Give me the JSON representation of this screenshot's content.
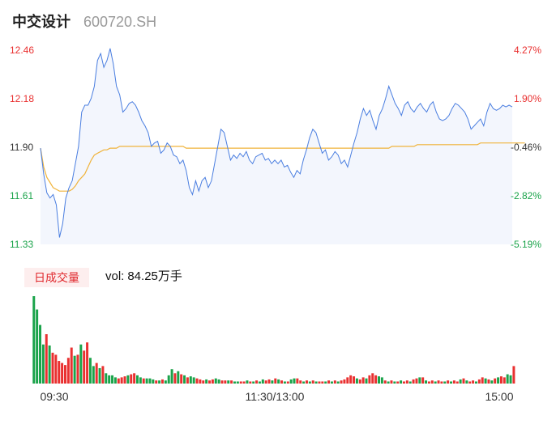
{
  "header": {
    "name": "中交设计",
    "code": "600720.SH"
  },
  "volume_panel": {
    "tab_label": "日成交量",
    "vol_prefix": "vol:",
    "vol_value": "84.25万手"
  },
  "colors": {
    "up": "#e93030",
    "down": "#1aa34a",
    "neutral": "#333333",
    "price_line": "#4a7ee0",
    "avg_line": "#f0b33a",
    "price_area": "#f3f6fd"
  },
  "chart_data": [
    {
      "type": "line",
      "series": [
        {
          "values": [
            11.89,
            11.74,
            11.63,
            11.6,
            11.62,
            11.56,
            11.37,
            11.45,
            11.6,
            11.66,
            11.7,
            11.8,
            11.9,
            12.1,
            12.14,
            12.14,
            12.18,
            12.25,
            12.4,
            12.44,
            12.36,
            12.4,
            12.47,
            12.38,
            12.25,
            12.2,
            12.1,
            12.12,
            12.15,
            12.16,
            12.14,
            12.1,
            12.05,
            12.02,
            11.98,
            11.9,
            11.92,
            11.93,
            11.86,
            11.88,
            11.92,
            11.9,
            11.85,
            11.84,
            11.8,
            11.82,
            11.76,
            11.66,
            11.62,
            11.7,
            11.64,
            11.7,
            11.72,
            11.66,
            11.7,
            11.8,
            11.9,
            12.0,
            11.98,
            11.9,
            11.82,
            11.85,
            11.83,
            11.86,
            11.84,
            11.87,
            11.82,
            11.8,
            11.84,
            11.85,
            11.86,
            11.82,
            11.83,
            11.8,
            11.82,
            11.8,
            11.82,
            11.78,
            11.79,
            11.75,
            11.72,
            11.76,
            11.74,
            11.82,
            11.88,
            11.95,
            12.0,
            11.98,
            11.92,
            11.86,
            11.88,
            11.82,
            11.84,
            11.87,
            11.85,
            11.8,
            11.82,
            11.78,
            11.85,
            11.92,
            11.98,
            12.06,
            12.12,
            12.08,
            12.11,
            12.05,
            12.0,
            12.08,
            12.12,
            12.18,
            12.25,
            12.2,
            12.15,
            12.12,
            12.08,
            12.14,
            12.16,
            12.12,
            12.1,
            12.13,
            12.15,
            12.12,
            12.1,
            12.14,
            12.16,
            12.1,
            12.06,
            12.05,
            12.06,
            12.08,
            12.12,
            12.15,
            12.14,
            12.12,
            12.1,
            12.06,
            12.0,
            12.02,
            12.04,
            12.06,
            12.02,
            12.1,
            12.15,
            12.12,
            12.11,
            12.12,
            12.14,
            12.13,
            12.14,
            12.13
          ],
          "ylim": [
            11.33,
            12.46
          ]
        },
        {
          "values": [
            11.89,
            11.78,
            11.72,
            11.69,
            11.66,
            11.65,
            11.64,
            11.64,
            11.64,
            11.64,
            11.65,
            11.67,
            11.7,
            11.72,
            11.74,
            11.78,
            11.82,
            11.85,
            11.86,
            11.87,
            11.88,
            11.88,
            11.89,
            11.89,
            11.89,
            11.9,
            11.9,
            11.9,
            11.9,
            11.9,
            11.9,
            11.9,
            11.9,
            11.9,
            11.9,
            11.9,
            11.9,
            11.9,
            11.9,
            11.9,
            11.9,
            11.9,
            11.9,
            11.9,
            11.9,
            11.9,
            11.89,
            11.89,
            11.89,
            11.89,
            11.89,
            11.89,
            11.89,
            11.89,
            11.89,
            11.89,
            11.89,
            11.89,
            11.89,
            11.89,
            11.89,
            11.89,
            11.89,
            11.89,
            11.89,
            11.89,
            11.89,
            11.89,
            11.89,
            11.89,
            11.89,
            11.89,
            11.89,
            11.89,
            11.89,
            11.89,
            11.89,
            11.89,
            11.89,
            11.89,
            11.89,
            11.89,
            11.89,
            11.89,
            11.89,
            11.89,
            11.89,
            11.89,
            11.89,
            11.89,
            11.89,
            11.89,
            11.89,
            11.89,
            11.89,
            11.89,
            11.89,
            11.89,
            11.89,
            11.89,
            11.89,
            11.89,
            11.89,
            11.89,
            11.89,
            11.89,
            11.89,
            11.89,
            11.89,
            11.89,
            11.89,
            11.9,
            11.9,
            11.9,
            11.9,
            11.9,
            11.9,
            11.9,
            11.9,
            11.91,
            11.91,
            11.91,
            11.91,
            11.91,
            11.91,
            11.91,
            11.91,
            11.91,
            11.91,
            11.91,
            11.91,
            11.91,
            11.91,
            11.91,
            11.91,
            11.91,
            11.91,
            11.91,
            11.91,
            11.92,
            11.92,
            11.92,
            11.92,
            11.92,
            11.92,
            11.92,
            11.92,
            11.92,
            11.92,
            11.92,
            11.92,
            11.92,
            11.92,
            11.92
          ]
        }
      ],
      "y_ticks_left": [
        "12.46",
        "12.18",
        "11.90",
        "11.61",
        "11.33"
      ],
      "y_ticks_right": [
        "4.27%",
        "1.90%",
        "-0.46%",
        "-2.82%",
        "-5.19%"
      ],
      "y_tick_colors": [
        "up",
        "up",
        "neutral",
        "down",
        "down"
      ]
    },
    {
      "type": "bar",
      "values": [
        85,
        72,
        57,
        38,
        48,
        37,
        30,
        28,
        22,
        20,
        18,
        25,
        35,
        27,
        28,
        38,
        32,
        40,
        25,
        17,
        20,
        15,
        17,
        10,
        8,
        8,
        6,
        5,
        6,
        7,
        8,
        9,
        10,
        8,
        6,
        5,
        5,
        5,
        4,
        3,
        3,
        4,
        3,
        8,
        14,
        10,
        12,
        9,
        8,
        6,
        7,
        6,
        5,
        4,
        3,
        4,
        3,
        4,
        5,
        4,
        3,
        3,
        3,
        3,
        2,
        2,
        2,
        2,
        3,
        2,
        2,
        3,
        2,
        4,
        3,
        4,
        3,
        5,
        4,
        3,
        2,
        2,
        4,
        5,
        5,
        3,
        2,
        3,
        2,
        3,
        2,
        2,
        2,
        2,
        3,
        2,
        3,
        2,
        3,
        4,
        6,
        8,
        7,
        5,
        4,
        6,
        5,
        8,
        10,
        8,
        7,
        6,
        3,
        2,
        3,
        2,
        2,
        3,
        2,
        3,
        2,
        4,
        5,
        6,
        6,
        3,
        2,
        3,
        2,
        3,
        2,
        2,
        3,
        2,
        3,
        2,
        4,
        5,
        3,
        2,
        3,
        2,
        4,
        6,
        5,
        4,
        3,
        5,
        6,
        7,
        6,
        9,
        8,
        17
      ],
      "colors": [
        "down",
        "down",
        "down",
        "down",
        "up",
        "down",
        "up",
        "up",
        "up",
        "up",
        "up",
        "up",
        "up",
        "down",
        "up",
        "down",
        "up",
        "up",
        "down",
        "down",
        "up",
        "down",
        "up",
        "down",
        "down",
        "down",
        "down",
        "up",
        "up",
        "up",
        "down",
        "up",
        "up",
        "down",
        "down",
        "up",
        "down",
        "down",
        "down",
        "up",
        "down",
        "up",
        "down",
        "down",
        "down",
        "up",
        "down",
        "up",
        "down",
        "up",
        "down",
        "down",
        "up",
        "up",
        "up",
        "down",
        "up",
        "up",
        "down",
        "down",
        "up",
        "up",
        "down",
        "up",
        "down",
        "down",
        "up",
        "up",
        "down",
        "up",
        "down",
        "up",
        "down",
        "down",
        "up",
        "up",
        "down",
        "up",
        "down",
        "up",
        "down",
        "up",
        "down",
        "down",
        "up",
        "up",
        "down",
        "up",
        "down",
        "up",
        "down",
        "up",
        "up",
        "down",
        "up",
        "down",
        "up",
        "down",
        "up",
        "up",
        "up",
        "up",
        "up",
        "down",
        "up",
        "up",
        "down",
        "up",
        "up",
        "up",
        "down",
        "down",
        "up",
        "down",
        "up",
        "down",
        "up",
        "down",
        "up",
        "up",
        "down",
        "up",
        "up",
        "down",
        "up",
        "down",
        "up",
        "up",
        "down",
        "up",
        "up",
        "down",
        "up",
        "down",
        "up",
        "up",
        "down",
        "up",
        "down",
        "up",
        "up",
        "down",
        "up",
        "up",
        "down",
        "up",
        "down",
        "up",
        "down",
        "up",
        "up",
        "down",
        "down",
        "up"
      ],
      "x_labels": [
        "09:30",
        "11:30/13:00",
        "15:00"
      ]
    }
  ]
}
